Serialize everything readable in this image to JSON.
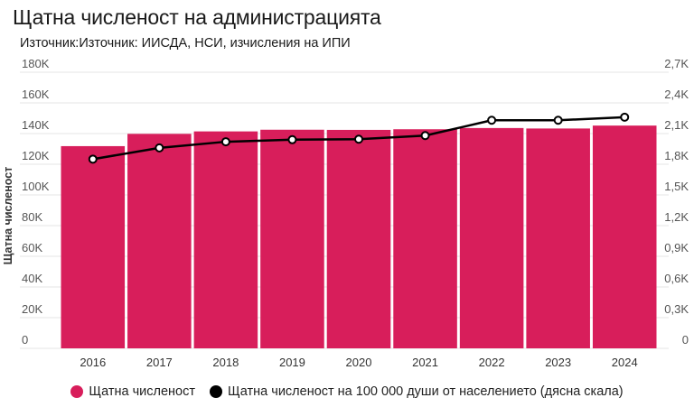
{
  "header": {
    "title": "Щатна численост на администрацията",
    "subtitle": "Източник:Източник: ИИСДА, НСИ, изчисления на ИПИ"
  },
  "colors": {
    "bar": "#d81e5b",
    "line": "#000000",
    "grid": "#e6e6e6",
    "axis_text": "#555555"
  },
  "chart_data": {
    "type": "bar",
    "categories": [
      "2016",
      "2017",
      "2018",
      "2019",
      "2020",
      "2021",
      "2022",
      "2023",
      "2024"
    ],
    "ylabel": "Щатна численост",
    "ylim": [
      0,
      180000
    ],
    "y_ticks": [
      0,
      20000,
      40000,
      60000,
      80000,
      100000,
      120000,
      140000,
      160000,
      180000
    ],
    "y_tick_labels": [
      "0",
      "20K",
      "40K",
      "60K",
      "80K",
      "100K",
      "120K",
      "140K",
      "160K",
      "180K"
    ],
    "y2lim": [
      0,
      2700
    ],
    "y2_ticks": [
      0,
      300,
      600,
      900,
      1200,
      1500,
      1800,
      2100,
      2400,
      2700
    ],
    "y2_tick_labels": [
      "0",
      "0,3K",
      "0,6K",
      "0,9K",
      "1,2K",
      "1,5K",
      "1,8K",
      "2,1K",
      "2,4K",
      "2,7K"
    ],
    "grid": true,
    "legend_position": "bottom",
    "series": [
      {
        "name": "Щатна численост",
        "type": "bar",
        "axis": "left",
        "values": [
          131800,
          139800,
          141400,
          142500,
          142400,
          142800,
          143600,
          143300,
          145200
        ]
      },
      {
        "name": "Щатна численост на 100 000 души от населението (дясна скала)",
        "type": "line",
        "axis": "right",
        "values": [
          1850,
          1960,
          2020,
          2040,
          2045,
          2080,
          2230,
          2230,
          2260
        ]
      }
    ]
  }
}
